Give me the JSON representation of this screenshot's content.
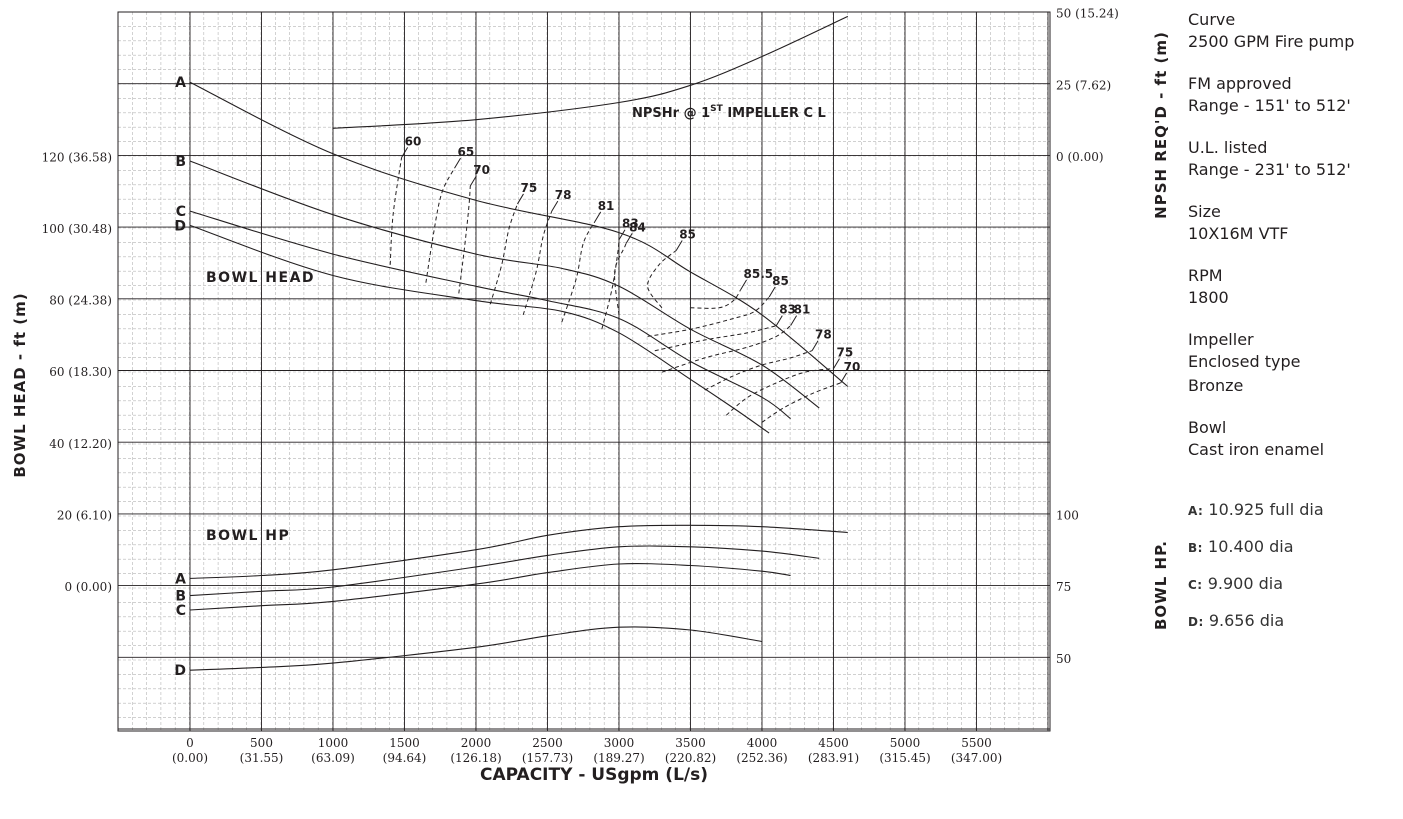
{
  "chart_data": {
    "type": "line",
    "x_axis": {
      "label": "CAPACITY - USgpm (L/s)",
      "range": [
        -500,
        6000
      ],
      "ticks": [
        {
          "v": 0,
          "a": "0",
          "b": "(0.00)"
        },
        {
          "v": 500,
          "a": "500",
          "b": "(31.55)"
        },
        {
          "v": 1000,
          "a": "1000",
          "b": "(63.09)"
        },
        {
          "v": 1500,
          "a": "1500",
          "b": "(94.64)"
        },
        {
          "v": 2000,
          "a": "2000",
          "b": "(126.18)"
        },
        {
          "v": 2500,
          "a": "2500",
          "b": "(157.73)"
        },
        {
          "v": 3000,
          "a": "3000",
          "b": "(189.27)"
        },
        {
          "v": 3500,
          "a": "3500",
          "b": "(220.82)"
        },
        {
          "v": 4000,
          "a": "4000",
          "b": "(252.36)"
        },
        {
          "v": 4500,
          "a": "4500",
          "b": "(283.91)"
        },
        {
          "v": 5000,
          "a": "5000",
          "b": "(315.45)"
        },
        {
          "v": 5500,
          "a": "5500",
          "b": "(347.00)"
        }
      ]
    },
    "y_axis_left": {
      "label": "BOWL HEAD - ft (m)",
      "range": [
        -40,
        160
      ],
      "ticks": [
        {
          "v": 120,
          "label": "120 (36.58)"
        },
        {
          "v": 100,
          "label": "100 (30.48)"
        },
        {
          "v": 80,
          "label": "80 (24.38)"
        },
        {
          "v": 60,
          "label": "60 (18.30)"
        },
        {
          "v": 40,
          "label": "40 (12.20)"
        },
        {
          "v": 20,
          "label": "20 (6.10)"
        },
        {
          "v": 0,
          "label": "0 (0.00)"
        }
      ]
    },
    "y_axis_npsh": {
      "label": "NPSH REQ'D - ft (m)",
      "range": [
        -50,
        50
      ],
      "ticks": [
        {
          "v": 50,
          "label": "50 (15.24)"
        },
        {
          "v": 25,
          "label": "25 (7.62)"
        },
        {
          "v": 0,
          "label": "0 (0.00)"
        }
      ]
    },
    "y_axis_hp": {
      "label": "BOWL HP.",
      "range": [
        30,
        130
      ],
      "ticks": [
        {
          "v": 100,
          "label": "100"
        },
        {
          "v": 75,
          "label": "75"
        },
        {
          "v": 50,
          "label": "50"
        }
      ]
    },
    "annotations": {
      "bowl_head": "BOWL HEAD",
      "bowl_hp": "BOWL HP",
      "npsh_pre": "NPSHr  @ 1",
      "npsh_sup": "ST",
      "npsh_post": " IMPELLER C   L"
    },
    "head_curves": [
      {
        "name": "A",
        "points": [
          [
            0,
            141
          ],
          [
            1000,
            121
          ],
          [
            2000,
            108
          ],
          [
            3000,
            99
          ],
          [
            3500,
            88
          ],
          [
            4000,
            76
          ],
          [
            4600,
            56
          ]
        ]
      },
      {
        "name": "B",
        "points": [
          [
            0,
            119
          ],
          [
            1000,
            104
          ],
          [
            2000,
            93
          ],
          [
            2600,
            89
          ],
          [
            3000,
            84
          ],
          [
            3500,
            72
          ],
          [
            4000,
            62
          ],
          [
            4400,
            50
          ]
        ]
      },
      {
        "name": "C",
        "points": [
          [
            0,
            105
          ],
          [
            1000,
            93
          ],
          [
            2000,
            84
          ],
          [
            2500,
            80
          ],
          [
            3000,
            75
          ],
          [
            3500,
            63
          ],
          [
            4000,
            53
          ],
          [
            4200,
            47
          ]
        ]
      },
      {
        "name": "D",
        "points": [
          [
            0,
            101
          ],
          [
            1000,
            87
          ],
          [
            2000,
            80
          ],
          [
            2600,
            77
          ],
          [
            3000,
            71
          ],
          [
            3500,
            58
          ],
          [
            3800,
            50
          ],
          [
            4050,
            43
          ]
        ]
      }
    ],
    "npsh_curve": {
      "points": [
        [
          1000,
          10
        ],
        [
          2000,
          13
        ],
        [
          3000,
          19
        ],
        [
          3500,
          25
        ],
        [
          4000,
          35
        ],
        [
          4600,
          49
        ]
      ]
    },
    "hp_curves": [
      {
        "name": "A",
        "points": [
          [
            0,
            78
          ],
          [
            500,
            79
          ],
          [
            1000,
            81
          ],
          [
            2000,
            88
          ],
          [
            2500,
            93
          ],
          [
            3000,
            96
          ],
          [
            3500,
            96.5
          ],
          [
            4000,
            96
          ],
          [
            4600,
            94
          ]
        ]
      },
      {
        "name": "B",
        "points": [
          [
            0,
            72
          ],
          [
            500,
            73.5
          ],
          [
            1000,
            75
          ],
          [
            2000,
            82
          ],
          [
            2500,
            86
          ],
          [
            3000,
            89
          ],
          [
            3500,
            89
          ],
          [
            4000,
            87.5
          ],
          [
            4400,
            85
          ]
        ]
      },
      {
        "name": "C",
        "points": [
          [
            0,
            67
          ],
          [
            500,
            68.5
          ],
          [
            1000,
            70
          ],
          [
            2000,
            76
          ],
          [
            2500,
            80
          ],
          [
            3000,
            83
          ],
          [
            3500,
            82.5
          ],
          [
            4000,
            80.5
          ],
          [
            4200,
            79
          ]
        ]
      },
      {
        "name": "D",
        "points": [
          [
            0,
            46
          ],
          [
            500,
            47
          ],
          [
            1000,
            48.5
          ],
          [
            2000,
            54
          ],
          [
            2500,
            58
          ],
          [
            3000,
            61
          ],
          [
            3500,
            60
          ],
          [
            4000,
            56
          ]
        ]
      }
    ],
    "efficiency_contours": [
      {
        "label": "60",
        "points": [
          [
            1400,
            90
          ],
          [
            1420,
            104
          ],
          [
            1480,
            120
          ]
        ]
      },
      {
        "label": "65",
        "points": [
          [
            1650,
            85
          ],
          [
            1700,
            98
          ],
          [
            1760,
            110
          ],
          [
            1850,
            117
          ]
        ]
      },
      {
        "label": "70",
        "points": [
          [
            1880,
            82
          ],
          [
            1920,
            95
          ],
          [
            1950,
            106
          ],
          [
            1960,
            112
          ]
        ]
      },
      {
        "label": "75",
        "points": [
          [
            2100,
            79
          ],
          [
            2180,
            90
          ],
          [
            2230,
            100
          ],
          [
            2290,
            107
          ]
        ]
      },
      {
        "label": "78",
        "points": [
          [
            2330,
            76
          ],
          [
            2420,
            88
          ],
          [
            2470,
            98
          ],
          [
            2530,
            105
          ]
        ]
      },
      {
        "label": "81",
        "points": [
          [
            2600,
            74
          ],
          [
            2700,
            86
          ],
          [
            2750,
            96
          ],
          [
            2830,
            102
          ]
        ]
      },
      {
        "label": "83",
        "points": [
          [
            2880,
            72
          ],
          [
            2950,
            83
          ],
          [
            2990,
            93
          ],
          [
            3000,
            97
          ]
        ]
      },
      {
        "label": "84",
        "points": [
          [
            3000,
            76
          ],
          [
            2970,
            88
          ],
          [
            3040,
            95
          ],
          [
            3050,
            96
          ]
        ]
      },
      {
        "label": "85",
        "points": [
          [
            3300,
            78
          ],
          [
            3200,
            84
          ],
          [
            3280,
            90
          ],
          [
            3400,
            94
          ]
        ]
      },
      {
        "label": "85.5",
        "points": [
          [
            3500,
            78
          ],
          [
            3700,
            78
          ],
          [
            3800,
            80
          ],
          [
            3850,
            83
          ]
        ]
      },
      {
        "label": "85",
        "points": [
          [
            3200,
            70
          ],
          [
            3500,
            72
          ],
          [
            3800,
            75
          ],
          [
            3950,
            77
          ],
          [
            4050,
            81
          ]
        ]
      },
      {
        "label": "83",
        "points": [
          [
            3250,
            66
          ],
          [
            3600,
            69
          ],
          [
            3900,
            71
          ],
          [
            4100,
            73
          ]
        ]
      },
      {
        "label": "81",
        "points": [
          [
            3300,
            60
          ],
          [
            3600,
            64
          ],
          [
            3900,
            67
          ],
          [
            4100,
            70
          ],
          [
            4200,
            73
          ]
        ]
      },
      {
        "label": "78",
        "points": [
          [
            3600,
            55
          ],
          [
            3800,
            59
          ],
          [
            4000,
            62
          ],
          [
            4200,
            64
          ],
          [
            4350,
            66
          ]
        ]
      },
      {
        "label": "75",
        "points": [
          [
            3750,
            48
          ],
          [
            3900,
            53
          ],
          [
            4100,
            57
          ],
          [
            4300,
            60
          ],
          [
            4500,
            61
          ]
        ]
      },
      {
        "label": "70",
        "points": [
          [
            4000,
            46
          ],
          [
            4150,
            50
          ],
          [
            4350,
            54
          ],
          [
            4550,
            57
          ]
        ]
      }
    ]
  },
  "specs": [
    {
      "title": "Curve",
      "lines": [
        "2500 GPM Fire pump"
      ]
    },
    {
      "title": "FM approved",
      "lines": [
        "Range - 151' to 512'"
      ]
    },
    {
      "title": "U.L. listed",
      "lines": [
        "Range - 231' to 512'"
      ]
    },
    {
      "title": "Size",
      "lines": [
        "10X16M VTF"
      ]
    },
    {
      "title": "RPM",
      "lines": [
        "1800"
      ]
    },
    {
      "title": "Impeller",
      "lines": [
        "Enclosed type",
        "Bronze"
      ]
    },
    {
      "title": "Bowl",
      "lines": [
        "Cast iron enamel"
      ]
    }
  ],
  "diameters": [
    {
      "key": "A:",
      "value": "10.925 full dia"
    },
    {
      "key": "B:",
      "value": "10.400 dia"
    },
    {
      "key": "C:",
      "value": "9.900 dia"
    },
    {
      "key": "D:",
      "value": "9.656 dia"
    }
  ]
}
